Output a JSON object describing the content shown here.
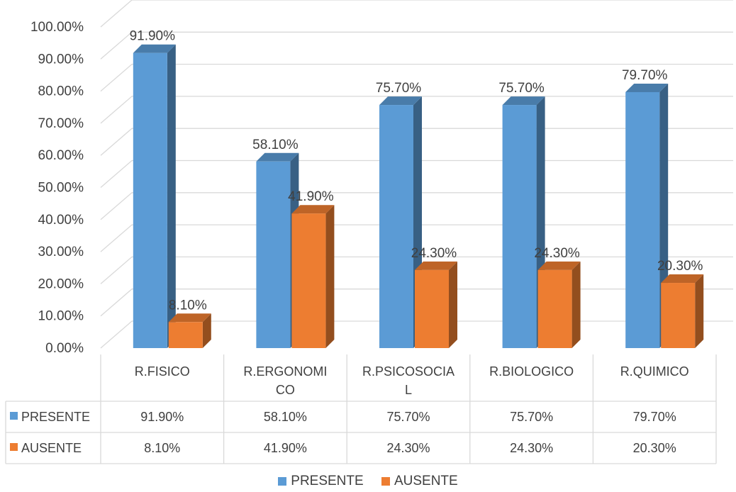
{
  "chart_data": {
    "type": "bar",
    "style": "3d-clustered-column-with-data-table",
    "categories": [
      "R.FISICO",
      "R.ERGONOMICO",
      "R.PSICOSOCIAL",
      "R.BIOLOGICO",
      "R.QUIMICO"
    ],
    "category_label_lines": [
      [
        "R.FISICO"
      ],
      [
        "R.ERGONOMI",
        "CO"
      ],
      [
        "R.PSICOSOCIA",
        "L"
      ],
      [
        "R.BIOLOGICO"
      ],
      [
        "R.QUIMICO"
      ]
    ],
    "series": [
      {
        "name": "PRESENTE",
        "values": [
          91.9,
          58.1,
          75.7,
          75.7,
          79.7
        ],
        "labels": [
          "91.90%",
          "58.10%",
          "75.70%",
          "75.70%",
          "79.70%"
        ],
        "color": "#5B9BD5"
      },
      {
        "name": "AUSENTE",
        "values": [
          8.1,
          41.9,
          24.3,
          24.3,
          20.3
        ],
        "labels": [
          "8.10%",
          "41.90%",
          "24.30%",
          "24.30%",
          "20.30%"
        ],
        "color": "#ED7D31"
      }
    ],
    "ylim": [
      0,
      100
    ],
    "yticks": [
      "0.00%",
      "10.00%",
      "20.00%",
      "30.00%",
      "40.00%",
      "50.00%",
      "60.00%",
      "70.00%",
      "80.00%",
      "90.00%",
      "100.00%"
    ],
    "grid": true,
    "legend": "bottom-center",
    "data_table": true
  }
}
